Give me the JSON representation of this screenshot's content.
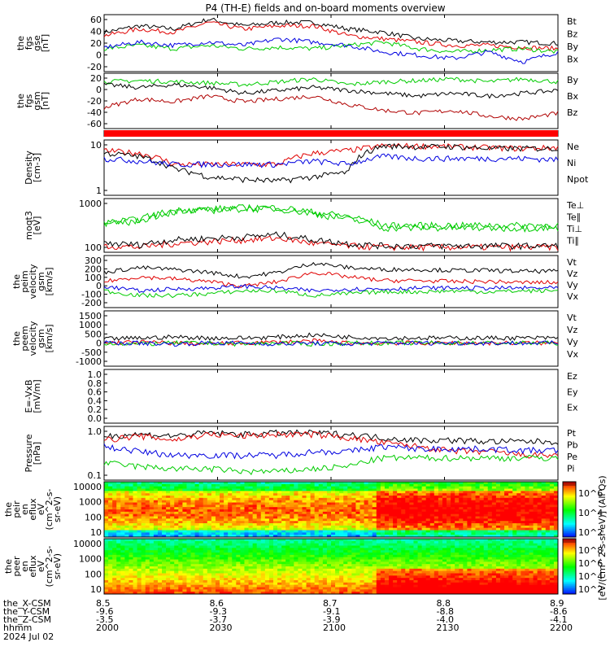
{
  "title": "P4 (TH-E) fields and on-board moments overview",
  "panels": [
    {
      "id": "fgs_gse",
      "ylabel": [
        "the",
        "fgs",
        "gse",
        "[nT]"
      ],
      "yticks": [
        "60",
        "40",
        "20",
        "0",
        "-20"
      ],
      "ylim": [
        -25,
        62
      ],
      "legend": [
        {
          "label": "Bt",
          "color": "#000000"
        },
        {
          "label": "Bz",
          "color": "#e00000"
        },
        {
          "label": "By",
          "color": "#00cc00"
        },
        {
          "label": "Bx",
          "color": "#0000e0"
        }
      ]
    },
    {
      "id": "fgs_gsm",
      "ylabel": [
        "the",
        "fgs",
        "gsm",
        "[nT]"
      ],
      "yticks": [
        "20",
        "0",
        "-20",
        "-40",
        "-60"
      ],
      "ylim": [
        -72,
        25
      ],
      "legend": [
        {
          "label": "By",
          "color": "#00cc00"
        },
        {
          "label": "Bx",
          "color": "#000000"
        },
        {
          "label": "Bz",
          "color": "#b00000"
        }
      ]
    },
    {
      "id": "flag",
      "ylabel": [],
      "yticks": [],
      "legend": []
    },
    {
      "id": "density",
      "ylabel": [
        "Density",
        "[cm-3]"
      ],
      "yticks": [
        "10",
        "1"
      ],
      "log": true,
      "ylim": [
        0.2,
        25
      ],
      "legend": [
        {
          "label": "Ne",
          "color": "#e00000"
        },
        {
          "label": "Ni",
          "color": "#000000"
        },
        {
          "label": "Npot",
          "color": "#0000e0"
        }
      ]
    },
    {
      "id": "temp",
      "ylabel": [
        "moqt3",
        "[eV]"
      ],
      "yticks": [
        "1000",
        "100"
      ],
      "log": true,
      "ylim": [
        30,
        2000
      ],
      "legend": [
        {
          "label": "Te⊥",
          "color": "#e00000"
        },
        {
          "label": "Te∥",
          "color": "#000000"
        },
        {
          "label": "Ti⊥",
          "color": "#00cc00"
        },
        {
          "label": "Ti∥",
          "color": "#00cc00"
        }
      ]
    },
    {
      "id": "peim",
      "ylabel": [
        "the",
        "peim",
        "velocity",
        "gsm",
        "[km/s]"
      ],
      "yticks": [
        "300",
        "200",
        "100",
        "0",
        "-100",
        "-200"
      ],
      "ylim": [
        -230,
        330
      ],
      "legend": [
        {
          "label": "Vt",
          "color": "#000000"
        },
        {
          "label": "Vz",
          "color": "#e00000"
        },
        {
          "label": "Vy",
          "color": "#00cc00"
        },
        {
          "label": "Vx",
          "color": "#0000e0"
        }
      ]
    },
    {
      "id": "peem",
      "ylabel": [
        "the",
        "peem",
        "velocity",
        "gsm",
        "[km/s]"
      ],
      "yticks": [
        "1500",
        "1000",
        "500",
        "0",
        "-500",
        "-1000"
      ],
      "ylim": [
        -1150,
        1600
      ],
      "legend": [
        {
          "label": "Vt",
          "color": "#000000"
        },
        {
          "label": "Vz",
          "color": "#e00000"
        },
        {
          "label": "Vy",
          "color": "#00cc00"
        },
        {
          "label": "Vx",
          "color": "#0000e0"
        }
      ]
    },
    {
      "id": "efield",
      "ylabel": [
        "E=-VxB",
        "[mV/m]"
      ],
      "yticks": [
        "1.0",
        "0.8",
        "0.6",
        "0.4",
        "0.2",
        "0.0"
      ],
      "ylim": [
        0,
        1
      ],
      "legend": [
        {
          "label": "Ez",
          "color": "#e00000"
        },
        {
          "label": "Ey",
          "color": "#00cc00"
        },
        {
          "label": "Ex",
          "color": "#0000e0"
        }
      ]
    },
    {
      "id": "pressure",
      "ylabel": [
        "Pressure",
        "[nPa]"
      ],
      "yticks": [
        "1.0",
        "0.1"
      ],
      "log": true,
      "ylim": [
        0.02,
        1.5
      ],
      "legend": [
        {
          "label": "Pt",
          "color": "#000000"
        },
        {
          "label": "Pb",
          "color": "#e00000"
        },
        {
          "label": "Pe",
          "color": "#00cc00"
        },
        {
          "label": "Pi",
          "color": "#0000e0"
        }
      ]
    },
    {
      "id": "peir",
      "ylabel": [
        "the",
        "peir",
        "en",
        "eflux",
        "eV",
        "(cm^2-s-",
        "sr-eV)"
      ],
      "yticks": [
        "10000",
        "1000",
        "100",
        "10"
      ],
      "legend": []
    },
    {
      "id": "peer",
      "ylabel": [
        "the",
        "peer",
        "en",
        "eflux",
        "eV",
        "(cm^2-s-",
        "sr-eV)"
      ],
      "yticks": [
        "10000",
        "1000",
        "100",
        "10"
      ],
      "legend": []
    }
  ],
  "colorbar": {
    "ticks_top": [
      "10^6",
      "10^4",
      "10^2"
    ],
    "ticks_bottom": [
      "10^8",
      "10^6",
      "10^4",
      "10^2"
    ],
    "label": "[eV/(cm^2-s-sr-eV)] (All Qs)"
  },
  "xaxis": {
    "rows": [
      {
        "label": "the_X-CSM",
        "values": [
          "8.5",
          "8.6",
          "8.7",
          "8.8",
          "8.9"
        ]
      },
      {
        "label": "the_Y-CSM",
        "values": [
          "-9.6",
          "-9.3",
          "-9.1",
          "-8.8",
          "-8.6"
        ]
      },
      {
        "label": "the_Z-CSM",
        "values": [
          "-3.5",
          "-3.7",
          "-3.9",
          "-4.0",
          "-4.1"
        ]
      },
      {
        "label": "hhmm",
        "values": [
          "2000",
          "2030",
          "2100",
          "2130",
          "2200"
        ]
      }
    ],
    "date": "2024 Jul 02"
  },
  "chart_data": {
    "type": "line",
    "title": "P4 (TH-E) fields and on-board moments overview",
    "time_range": [
      "2000",
      "2200"
    ],
    "x_ticks_hhmm": [
      "2000",
      "2030",
      "2100",
      "2130",
      "2200"
    ],
    "series": [
      {
        "panel": "fgs_gse",
        "name": "Bt",
        "values": [
          35,
          45,
          40,
          55,
          45,
          50,
          50,
          40,
          35,
          25,
          22,
          20,
          20,
          18
        ]
      },
      {
        "panel": "fgs_gse",
        "name": "Bz",
        "values": [
          30,
          40,
          35,
          50,
          40,
          45,
          45,
          30,
          25,
          20,
          15,
          15,
          12,
          10
        ]
      },
      {
        "panel": "fgs_gse",
        "name": "By",
        "values": [
          10,
          15,
          10,
          15,
          10,
          12,
          10,
          15,
          20,
          10,
          5,
          8,
          10,
          5
        ]
      },
      {
        "panel": "fgs_gse",
        "name": "Bx",
        "values": [
          12,
          20,
          15,
          20,
          15,
          25,
          20,
          15,
          5,
          0,
          -5,
          5,
          -10,
          5
        ]
      },
      {
        "panel": "fgs_gsm",
        "name": "By",
        "values": [
          10,
          12,
          10,
          8,
          5,
          10,
          15,
          5,
          10,
          12,
          15,
          10,
          15,
          10
        ]
      },
      {
        "panel": "fgs_gsm",
        "name": "Bx",
        "values": [
          5,
          0,
          5,
          0,
          -10,
          -5,
          0,
          -5,
          -10,
          -15,
          -10,
          -15,
          -10,
          -5
        ]
      },
      {
        "panel": "fgs_gsm",
        "name": "Bz",
        "values": [
          -35,
          -20,
          -25,
          -15,
          -25,
          -20,
          -15,
          -30,
          -40,
          -45,
          -40,
          -50,
          -55,
          -45
        ]
      },
      {
        "panel": "density",
        "name": "Ne",
        "values": [
          10,
          8,
          3,
          3,
          3,
          3,
          8,
          10,
          15,
          15,
          14,
          13,
          12,
          13
        ]
      },
      {
        "panel": "density",
        "name": "Ni",
        "values": [
          8,
          6,
          2,
          1,
          0.8,
          0.7,
          1,
          1.5,
          15,
          14,
          14,
          12,
          12,
          12
        ]
      },
      {
        "panel": "density",
        "name": "Npot",
        "values": [
          5,
          4,
          3,
          3,
          3,
          3,
          4,
          3,
          6,
          5,
          5,
          5,
          5,
          4.5
        ]
      },
      {
        "panel": "temp",
        "name": "Te⊥",
        "values": [
          50,
          45,
          60,
          70,
          80,
          90,
          60,
          50,
          45,
          45,
          45,
          45,
          45,
          45
        ]
      },
      {
        "panel": "temp",
        "name": "Te∥",
        "values": [
          60,
          55,
          80,
          90,
          100,
          120,
          80,
          60,
          50,
          50,
          50,
          50,
          50,
          50
        ]
      },
      {
        "panel": "temp",
        "name": "Ti⊥",
        "values": [
          300,
          400,
          800,
          900,
          1000,
          1000,
          700,
          500,
          250,
          250,
          250,
          250,
          250,
          250
        ]
      },
      {
        "panel": "temp",
        "name": "Ti∥",
        "values": [
          250,
          350,
          700,
          800,
          900,
          900,
          600,
          400,
          200,
          200,
          200,
          200,
          200,
          200
        ]
      },
      {
        "panel": "peim",
        "name": "Vt",
        "values": [
          150,
          200,
          180,
          150,
          100,
          150,
          250,
          200,
          180,
          180,
          170,
          170,
          160,
          160
        ]
      },
      {
        "panel": "peim",
        "name": "Vz",
        "values": [
          50,
          100,
          80,
          50,
          0,
          50,
          150,
          100,
          60,
          60,
          50,
          50,
          40,
          40
        ]
      },
      {
        "panel": "peim",
        "name": "Vy",
        "values": [
          -50,
          -100,
          -100,
          -80,
          -50,
          -50,
          -100,
          -80,
          -60,
          -60,
          -50,
          -60,
          -50,
          -50
        ]
      },
      {
        "panel": "peim",
        "name": "Vx",
        "values": [
          0,
          -50,
          -30,
          -20,
          0,
          -20,
          -50,
          -30,
          -30,
          -20,
          -20,
          -20,
          -20,
          -20
        ]
      },
      {
        "panel": "peem",
        "name": "Vt",
        "values": [
          200,
          250,
          300,
          250,
          250,
          300,
          400,
          300,
          250,
          250,
          250,
          250,
          250,
          250
        ]
      },
      {
        "panel": "peem",
        "name": "Vz",
        "values": [
          0,
          50,
          0,
          -50,
          0,
          50,
          100,
          0,
          0,
          0,
          0,
          0,
          0,
          0
        ]
      },
      {
        "panel": "peem",
        "name": "Vy",
        "values": [
          0,
          -50,
          0,
          0,
          -50,
          0,
          -50,
          0,
          0,
          0,
          0,
          0,
          0,
          0
        ]
      },
      {
        "panel": "peem",
        "name": "Vx",
        "values": [
          0,
          0,
          -50,
          0,
          0,
          -50,
          0,
          -50,
          0,
          0,
          0,
          0,
          0,
          0
        ]
      },
      {
        "panel": "pressure",
        "name": "Pt",
        "values": [
          0.7,
          0.8,
          0.7,
          0.9,
          0.8,
          0.9,
          0.9,
          0.8,
          0.6,
          0.5,
          0.5,
          0.45,
          0.45,
          0.45
        ]
      },
      {
        "panel": "pressure",
        "name": "Pb",
        "values": [
          0.5,
          0.7,
          0.5,
          0.8,
          0.7,
          0.8,
          0.8,
          0.6,
          0.4,
          0.3,
          0.2,
          0.2,
          0.15,
          0.15
        ]
      },
      {
        "panel": "pressure",
        "name": "Pe",
        "values": [
          0.08,
          0.06,
          0.05,
          0.05,
          0.04,
          0.04,
          0.05,
          0.06,
          0.12,
          0.12,
          0.12,
          0.12,
          0.12,
          0.12
        ]
      },
      {
        "panel": "pressure",
        "name": "Pi",
        "values": [
          0.3,
          0.2,
          0.15,
          0.15,
          0.15,
          0.15,
          0.2,
          0.2,
          0.3,
          0.25,
          0.25,
          0.25,
          0.22,
          0.22
        ]
      }
    ]
  }
}
